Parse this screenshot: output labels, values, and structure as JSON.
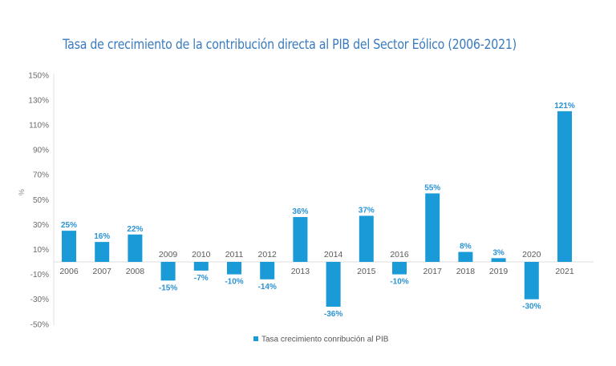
{
  "chart_data": {
    "type": "bar",
    "title": "Tasa de crecimiento de la contribución directa al PIB del Sector Eólico (2006-2021)",
    "xlabel": "",
    "ylabel": "%",
    "ylim": [
      -50,
      150
    ],
    "yticks": [
      150,
      130,
      110,
      90,
      70,
      50,
      30,
      10,
      -10,
      -30,
      -50
    ],
    "ytick_labels": [
      "150%",
      "130%",
      "110%",
      "90%",
      "70%",
      "50%",
      "30%",
      "10%",
      "-10%",
      "-30%",
      "-50%"
    ],
    "categories": [
      "2006",
      "2007",
      "2008",
      "2009",
      "2010",
      "2011",
      "2012",
      "2013",
      "2014",
      "2015",
      "2016",
      "2017",
      "2018",
      "2019",
      "2020",
      "2021"
    ],
    "series": [
      {
        "name": "Tasa crecimiento conribución al PIB",
        "color": "#1a9ad6",
        "values": [
          25,
          16,
          22,
          -15,
          -7,
          -10,
          -14,
          36,
          -36,
          37,
          -10,
          55,
          8,
          3,
          -30,
          121
        ],
        "data_labels": [
          "25%",
          "16%",
          "22%",
          "-15%",
          "-7%",
          "-10%",
          "-14%",
          "36%",
          "-36%",
          "37%",
          "-10%",
          "55%",
          "8%",
          "3%",
          "-30%",
          "121%"
        ]
      }
    ],
    "grid": false,
    "legend": "bottom-center"
  },
  "colors": {
    "title": "#3a7bbf",
    "bar": "#1a9ad6",
    "data_label": "#2a93d5"
  }
}
